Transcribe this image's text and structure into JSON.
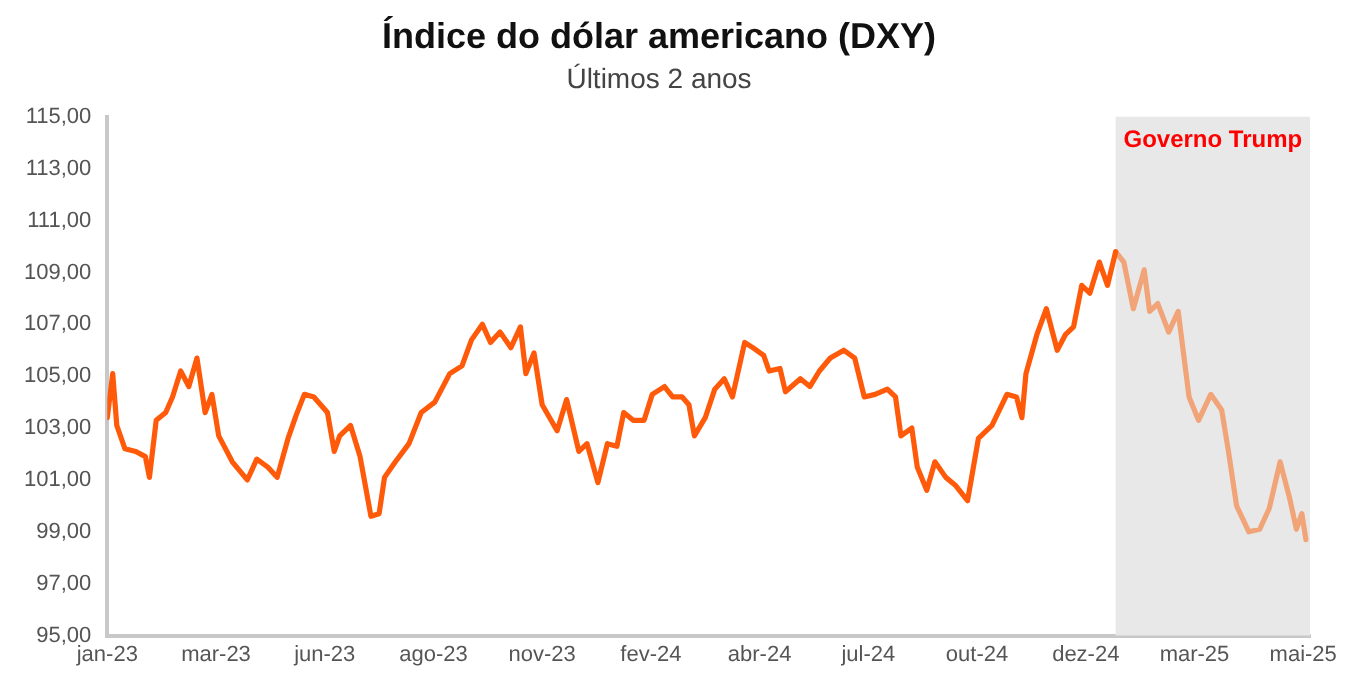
{
  "chart_data": {
    "type": "line",
    "title": "Índice do dólar americano (DXY)",
    "subtitle": "Últimos 2 anos",
    "xlim": [
      "2023-01-02",
      "2025-06-05"
    ],
    "xticks": [
      {
        "value": "2023-01-02",
        "label": "jan-23"
      },
      {
        "value": "2023-03-23",
        "label": "mar-23"
      },
      {
        "value": "2023-06-11",
        "label": "jun-23"
      },
      {
        "value": "2023-08-30",
        "label": "ago-23"
      },
      {
        "value": "2023-11-18",
        "label": "nov-23"
      },
      {
        "value": "2024-02-06",
        "label": "fev-24"
      },
      {
        "value": "2024-04-26",
        "label": "abr-24"
      },
      {
        "value": "2024-07-15",
        "label": "jul-24"
      },
      {
        "value": "2024-10-03",
        "label": "out-24"
      },
      {
        "value": "2024-12-22",
        "label": "dez-24"
      },
      {
        "value": "2025-03-12",
        "label": "mar-25"
      },
      {
        "value": "2025-05-31",
        "label": "mai-25"
      }
    ],
    "ylim": [
      95,
      115
    ],
    "yticks": [
      {
        "value": 95,
        "label": "95,00"
      },
      {
        "value": 97,
        "label": "97,00"
      },
      {
        "value": 99,
        "label": "99,00"
      },
      {
        "value": 101,
        "label": "101,00"
      },
      {
        "value": 103,
        "label": "103,00"
      },
      {
        "value": 105,
        "label": "105,00"
      },
      {
        "value": 107,
        "label": "107,00"
      },
      {
        "value": 109,
        "label": "109,00"
      },
      {
        "value": 111,
        "label": "111,00"
      },
      {
        "value": 113,
        "label": "113,00"
      },
      {
        "value": 115,
        "label": "115,00"
      }
    ],
    "grid": false,
    "legend": false,
    "marker": "none",
    "line_style": "solid",
    "bands": [
      {
        "axis": "x",
        "from": "2025-01-13",
        "to": "2025-06-05",
        "label": "Governo Trump",
        "color": "#e8e8e8"
      }
    ],
    "series": [
      {
        "color": "#ff5a0a",
        "x": [
          "2023-01-02",
          "2023-01-06",
          "2023-01-09",
          "2023-01-15",
          "2023-01-23",
          "2023-01-30",
          "2023-02-02",
          "2023-02-07",
          "2023-02-14",
          "2023-02-19",
          "2023-02-25",
          "2023-03-03",
          "2023-03-09",
          "2023-03-15",
          "2023-03-20",
          "2023-03-25",
          "2023-04-04",
          "2023-04-15",
          "2023-04-22",
          "2023-04-30",
          "2023-05-07",
          "2023-05-15",
          "2023-05-21",
          "2023-05-27",
          "2023-06-03",
          "2023-06-13",
          "2023-06-18",
          "2023-06-22",
          "2023-06-30",
          "2023-07-07",
          "2023-07-15",
          "2023-07-21",
          "2023-07-25",
          "2023-08-02",
          "2023-08-12",
          "2023-08-21",
          "2023-08-31",
          "2023-09-11",
          "2023-09-20",
          "2023-09-27",
          "2023-10-05",
          "2023-10-11",
          "2023-10-18",
          "2023-10-26",
          "2023-11-02",
          "2023-11-06",
          "2023-11-12",
          "2023-11-18",
          "2023-11-29",
          "2023-12-06",
          "2023-12-15",
          "2023-12-21",
          "2023-12-29",
          "2024-01-05",
          "2024-01-12",
          "2024-01-17",
          "2024-01-24",
          "2024-02-01",
          "2024-02-07",
          "2024-02-16",
          "2024-02-22",
          "2024-02-29",
          "2024-03-05",
          "2024-03-09",
          "2024-03-17",
          "2024-03-24",
          "2024-03-31",
          "2024-04-06",
          "2024-04-15",
          "2024-04-21",
          "2024-04-29",
          "2024-05-03",
          "2024-05-11",
          "2024-05-15",
          "2024-05-26",
          "2024-06-02",
          "2024-06-09",
          "2024-06-17",
          "2024-06-27",
          "2024-07-05",
          "2024-07-12",
          "2024-07-20",
          "2024-07-29",
          "2024-08-04",
          "2024-08-08",
          "2024-08-16",
          "2024-08-20",
          "2024-08-27",
          "2024-09-02",
          "2024-09-10",
          "2024-09-17",
          "2024-09-26",
          "2024-10-04",
          "2024-10-14",
          "2024-10-25",
          "2024-11-01",
          "2024-11-05",
          "2024-11-08",
          "2024-11-16",
          "2024-11-23",
          "2024-12-01",
          "2024-12-07",
          "2024-12-13",
          "2024-12-19",
          "2024-12-25",
          "2025-01-01",
          "2025-01-07",
          "2025-01-13"
        ],
        "values": [
          103.4,
          105.1,
          103.1,
          102.2,
          102.1,
          101.9,
          101.1,
          103.3,
          103.6,
          104.2,
          105.2,
          104.6,
          105.7,
          103.6,
          104.3,
          102.7,
          101.7,
          101.0,
          101.8,
          101.5,
          101.1,
          102.6,
          103.5,
          104.3,
          104.2,
          103.6,
          102.1,
          102.7,
          103.1,
          101.9,
          99.6,
          99.7,
          101.1,
          101.7,
          102.4,
          103.6,
          104.0,
          105.1,
          105.4,
          106.4,
          107.0,
          106.3,
          106.7,
          106.1,
          106.9,
          105.1,
          105.9,
          103.9,
          102.9,
          104.1,
          102.1,
          102.4,
          100.9,
          102.4,
          102.3,
          103.6,
          103.3,
          103.3,
          104.3,
          104.6,
          104.2,
          104.2,
          103.9,
          102.7,
          103.4,
          104.5,
          104.9,
          104.2,
          106.3,
          106.1,
          105.8,
          105.2,
          105.3,
          104.4,
          104.9,
          104.6,
          105.2,
          105.7,
          106.0,
          105.7,
          104.2,
          104.3,
          104.5,
          104.2,
          102.7,
          103.0,
          101.5,
          100.6,
          101.7,
          101.1,
          100.8,
          100.2,
          102.6,
          103.1,
          104.3,
          104.2,
          103.4,
          105.1,
          106.6,
          107.6,
          106.0,
          106.6,
          106.9,
          108.5,
          108.2,
          109.4,
          108.5,
          109.8
        ]
      },
      {
        "color": "#f0a478",
        "x": [
          "2025-01-13",
          "2025-01-19",
          "2025-01-26",
          "2025-02-03",
          "2025-02-07",
          "2025-02-13",
          "2025-02-21",
          "2025-02-28",
          "2025-03-08",
          "2025-03-15",
          "2025-03-24",
          "2025-04-01",
          "2025-04-06",
          "2025-04-12",
          "2025-04-21",
          "2025-04-29",
          "2025-05-06",
          "2025-05-14",
          "2025-05-21",
          "2025-05-26",
          "2025-05-30",
          "2025-06-02"
        ],
        "values": [
          109.8,
          109.4,
          107.6,
          109.1,
          107.5,
          107.8,
          106.7,
          107.5,
          104.2,
          103.3,
          104.3,
          103.7,
          102.1,
          100.0,
          99.0,
          99.1,
          99.9,
          101.7,
          100.3,
          99.1,
          99.7,
          98.7
        ]
      }
    ]
  }
}
